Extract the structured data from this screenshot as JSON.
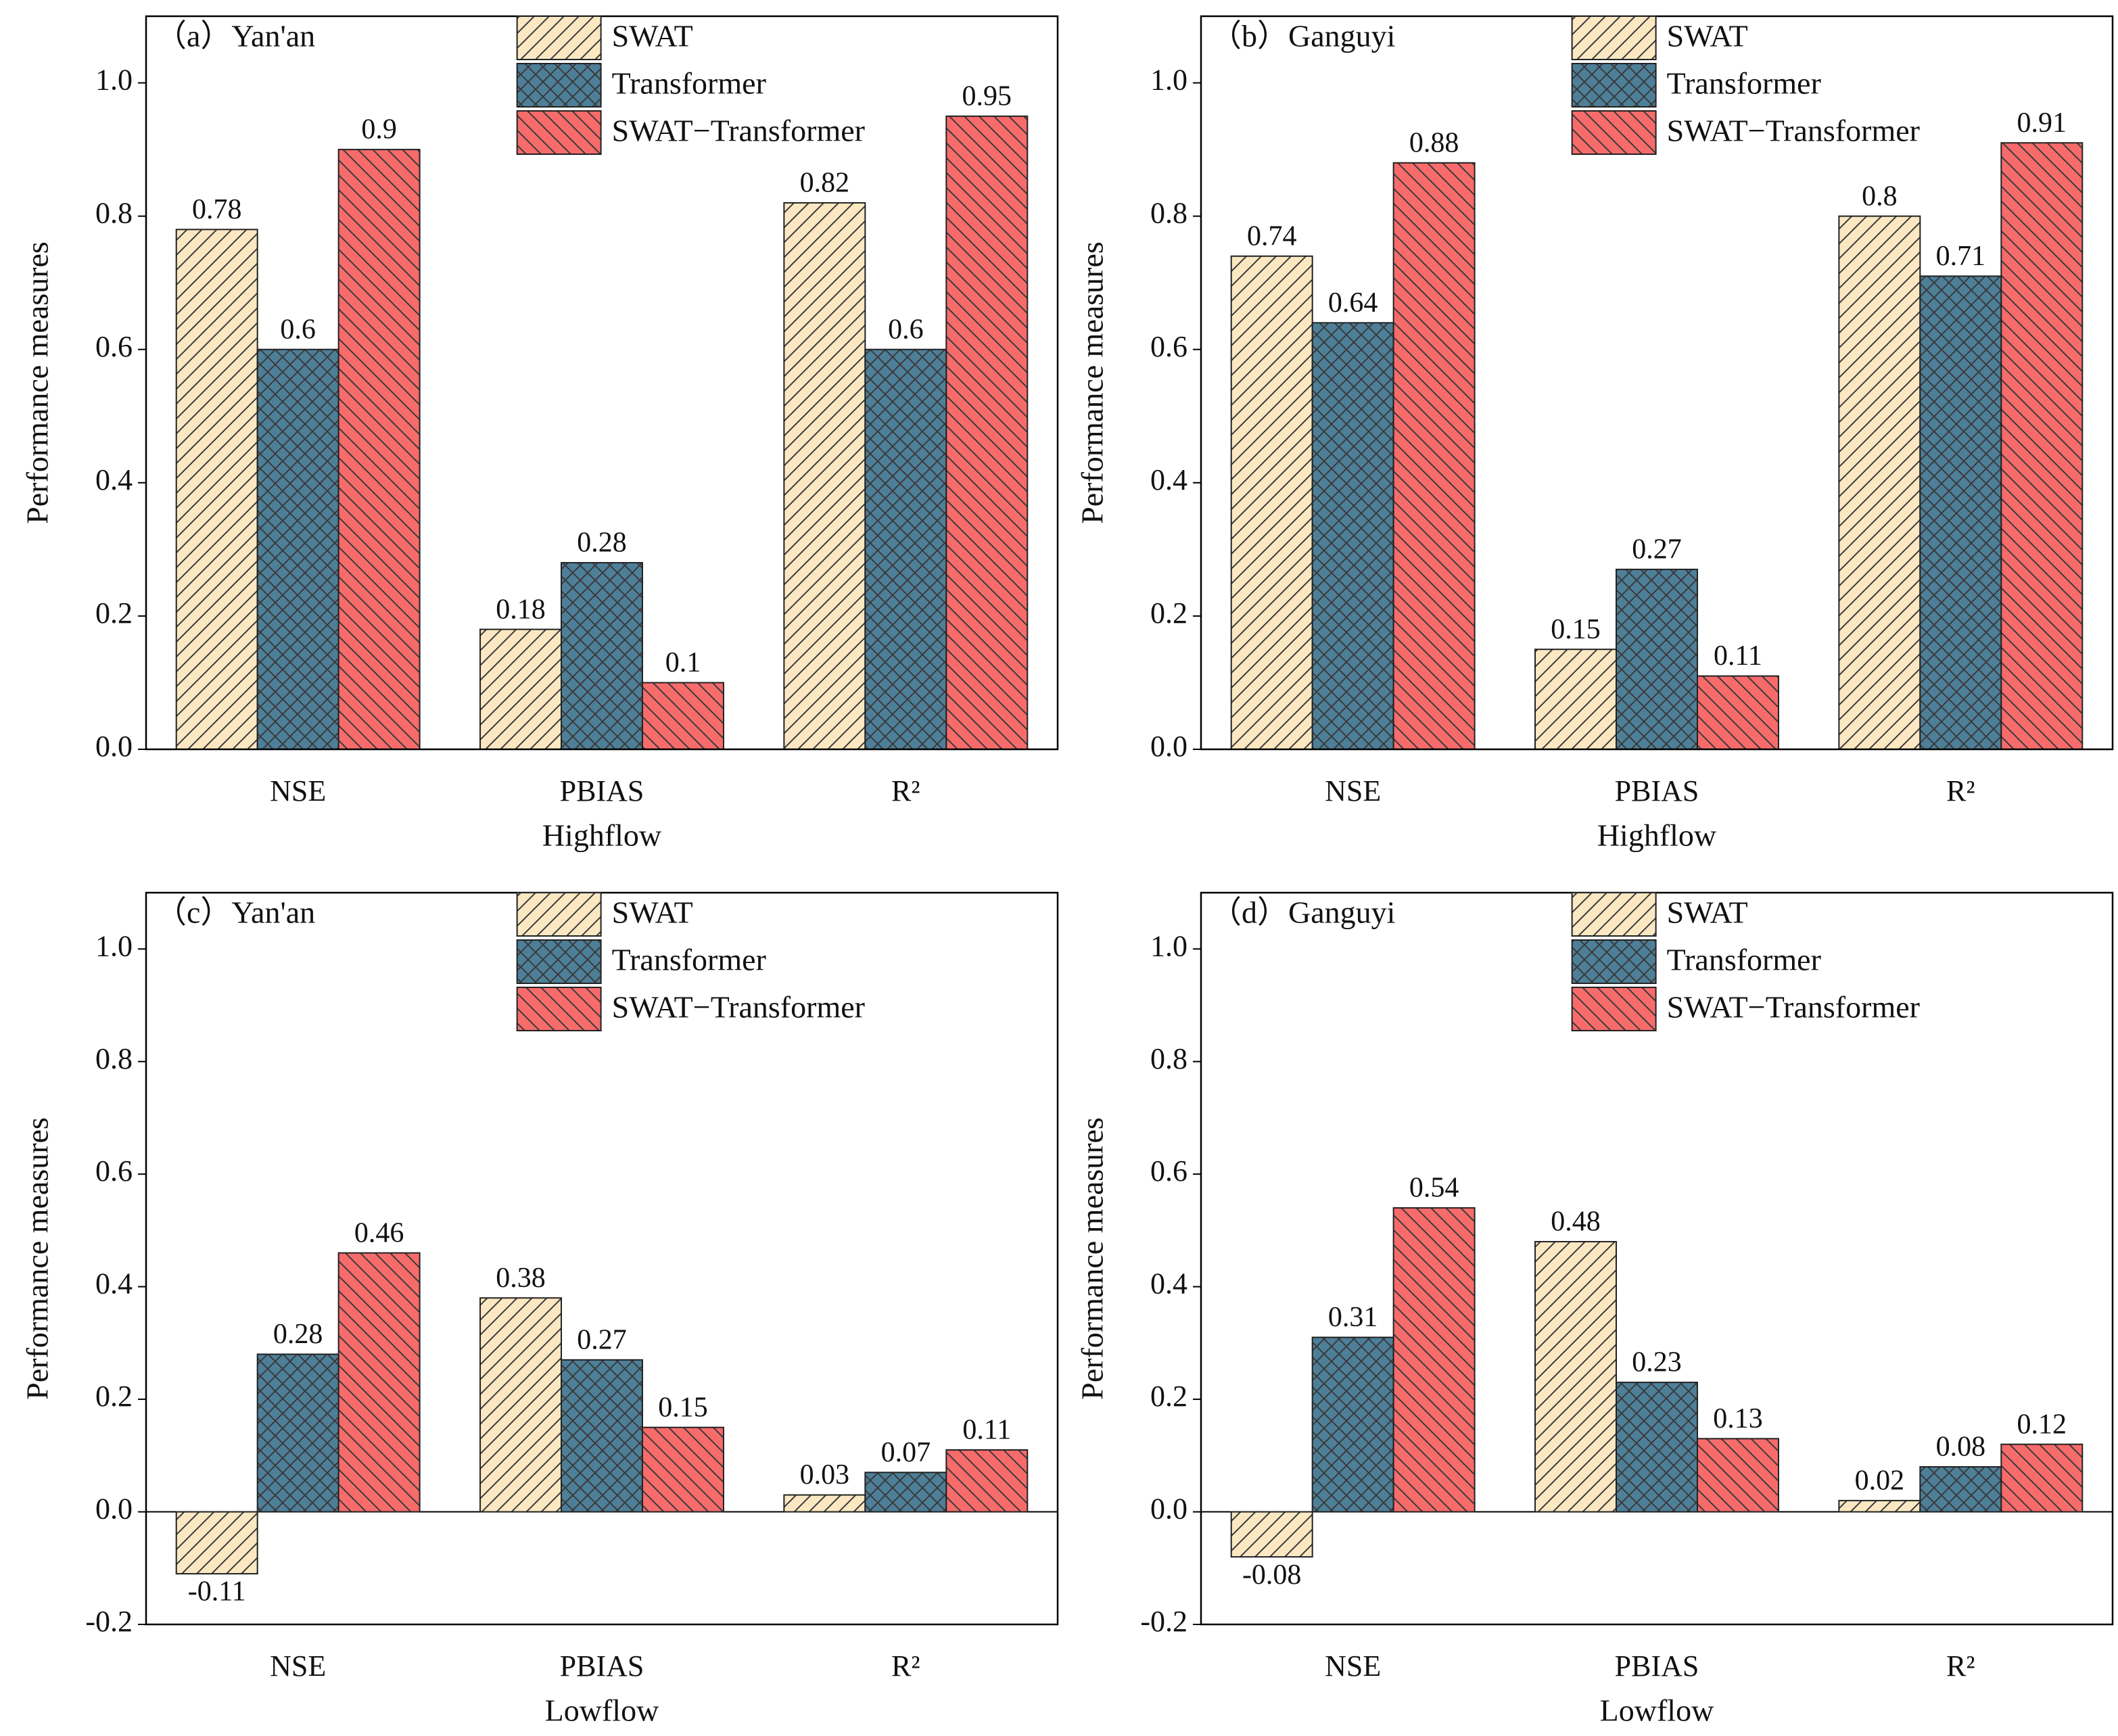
{
  "chart_data": [
    {
      "type": "bar",
      "title": "（a）Yan'an",
      "x_label": "Highflow",
      "y_label": "Performance measures",
      "categories": [
        "NSE",
        "PBIAS",
        "R²"
      ],
      "series": [
        {
          "name": "SWAT",
          "color": "#fbe8c2",
          "values": [
            0.78,
            0.18,
            0.82
          ]
        },
        {
          "name": "Transformer",
          "color": "#4e7f99",
          "values": [
            0.6,
            0.28,
            0.6
          ]
        },
        {
          "name": "SWAT−Transformer",
          "color": "#f76b6b",
          "values": [
            0.9,
            0.1,
            0.95
          ]
        }
      ],
      "ylim": [
        0,
        1.1
      ],
      "yticks": [
        {
          "value": 0,
          "label": "0.0"
        },
        0.2,
        0.4,
        0.6,
        0.8,
        {
          "value": 1,
          "label": "1.0"
        }
      ]
    },
    {
      "type": "bar",
      "title": "（b）Ganguyi",
      "x_label": "Highflow",
      "y_label": "Performance measures",
      "categories": [
        "NSE",
        "PBIAS",
        "R²"
      ],
      "series": [
        {
          "name": "SWAT",
          "color": "#fbe8c2",
          "values": [
            0.74,
            0.15,
            0.8
          ]
        },
        {
          "name": "Transformer",
          "color": "#4e7f99",
          "values": [
            0.64,
            0.27,
            0.71
          ]
        },
        {
          "name": "SWAT−Transformer",
          "color": "#f76b6b",
          "values": [
            0.88,
            0.11,
            0.91
          ]
        }
      ],
      "ylim": [
        0,
        1.1
      ],
      "yticks": [
        {
          "value": 0,
          "label": "0.0"
        },
        0.2,
        0.4,
        0.6,
        0.8,
        {
          "value": 1,
          "label": "1.0"
        }
      ]
    },
    {
      "type": "bar",
      "title": "（c）Yan'an",
      "x_label": "Lowflow",
      "y_label": "Performance measures",
      "categories": [
        "NSE",
        "PBIAS",
        "R²"
      ],
      "series": [
        {
          "name": "SWAT",
          "color": "#fbe8c2",
          "values": [
            -0.11,
            0.38,
            0.03
          ]
        },
        {
          "name": "Transformer",
          "color": "#4e7f99",
          "values": [
            0.28,
            0.27,
            0.07
          ]
        },
        {
          "name": "SWAT−Transformer",
          "color": "#f76b6b",
          "values": [
            0.46,
            0.15,
            0.11
          ]
        }
      ],
      "ylim": [
        -0.2,
        1.1
      ],
      "yticks": [
        -0.2,
        {
          "value": 0,
          "label": "0.0"
        },
        0.2,
        0.4,
        0.6,
        0.8,
        {
          "value": 1,
          "label": "1.0"
        }
      ]
    },
    {
      "type": "bar",
      "title": "（d）Ganguyi",
      "x_label": "Lowflow",
      "y_label": "Performance measures",
      "categories": [
        "NSE",
        "PBIAS",
        "R²"
      ],
      "series": [
        {
          "name": "SWAT",
          "color": "#fbe8c2",
          "values": [
            -0.08,
            0.48,
            0.02
          ]
        },
        {
          "name": "Transformer",
          "color": "#4e7f99",
          "values": [
            0.31,
            0.23,
            0.08
          ]
        },
        {
          "name": "SWAT−Transformer",
          "color": "#f76b6b",
          "values": [
            0.54,
            0.13,
            0.12
          ]
        }
      ],
      "ylim": [
        -0.2,
        1.1
      ],
      "yticks": [
        -0.2,
        {
          "value": 0,
          "label": "0.0"
        },
        0.2,
        0.4,
        0.6,
        0.8,
        {
          "value": 1,
          "label": "1.0"
        }
      ]
    }
  ]
}
